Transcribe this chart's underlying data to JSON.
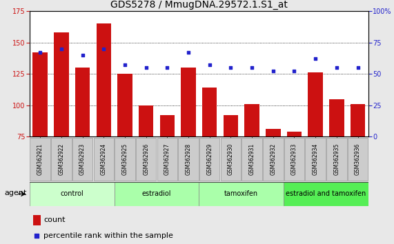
{
  "title": "GDS5278 / MmugDNA.29572.1.S1_at",
  "categories": [
    "GSM362921",
    "GSM362922",
    "GSM362923",
    "GSM362924",
    "GSM362925",
    "GSM362926",
    "GSM362927",
    "GSM362928",
    "GSM362929",
    "GSM362930",
    "GSM362931",
    "GSM362932",
    "GSM362933",
    "GSM362934",
    "GSM362935",
    "GSM362936"
  ],
  "bar_values": [
    142,
    158,
    130,
    165,
    125,
    100,
    92,
    130,
    114,
    92,
    101,
    81,
    79,
    126,
    105,
    101
  ],
  "dot_values_pct": [
    67,
    70,
    65,
    70,
    57,
    55,
    55,
    67,
    57,
    55,
    55,
    52,
    52,
    62,
    55,
    55
  ],
  "bar_color": "#cc1111",
  "dot_color": "#2222cc",
  "ylim_left": [
    75,
    175
  ],
  "ylim_right": [
    0,
    100
  ],
  "yticks_left": [
    75,
    100,
    125,
    150,
    175
  ],
  "yticks_right": [
    0,
    25,
    50,
    75,
    100
  ],
  "groups": [
    {
      "label": "control",
      "start": 0,
      "end": 4,
      "color": "#ccffcc"
    },
    {
      "label": "estradiol",
      "start": 4,
      "end": 8,
      "color": "#aaffaa"
    },
    {
      "label": "tamoxifen",
      "start": 8,
      "end": 12,
      "color": "#aaffaa"
    },
    {
      "label": "estradiol and tamoxifen",
      "start": 12,
      "end": 16,
      "color": "#55ee55"
    }
  ],
  "agent_label": "agent",
  "legend_count_label": "count",
  "legend_pct_label": "percentile rank within the sample",
  "fig_bg": "#e8e8e8",
  "plot_bg": "#ffffff",
  "xtick_box_color": "#cccccc",
  "xtick_box_edge": "#999999",
  "title_fontsize": 10,
  "tick_fontsize": 7,
  "xtick_fontsize": 5.5,
  "group_fontsize": 7,
  "legend_fontsize": 8
}
